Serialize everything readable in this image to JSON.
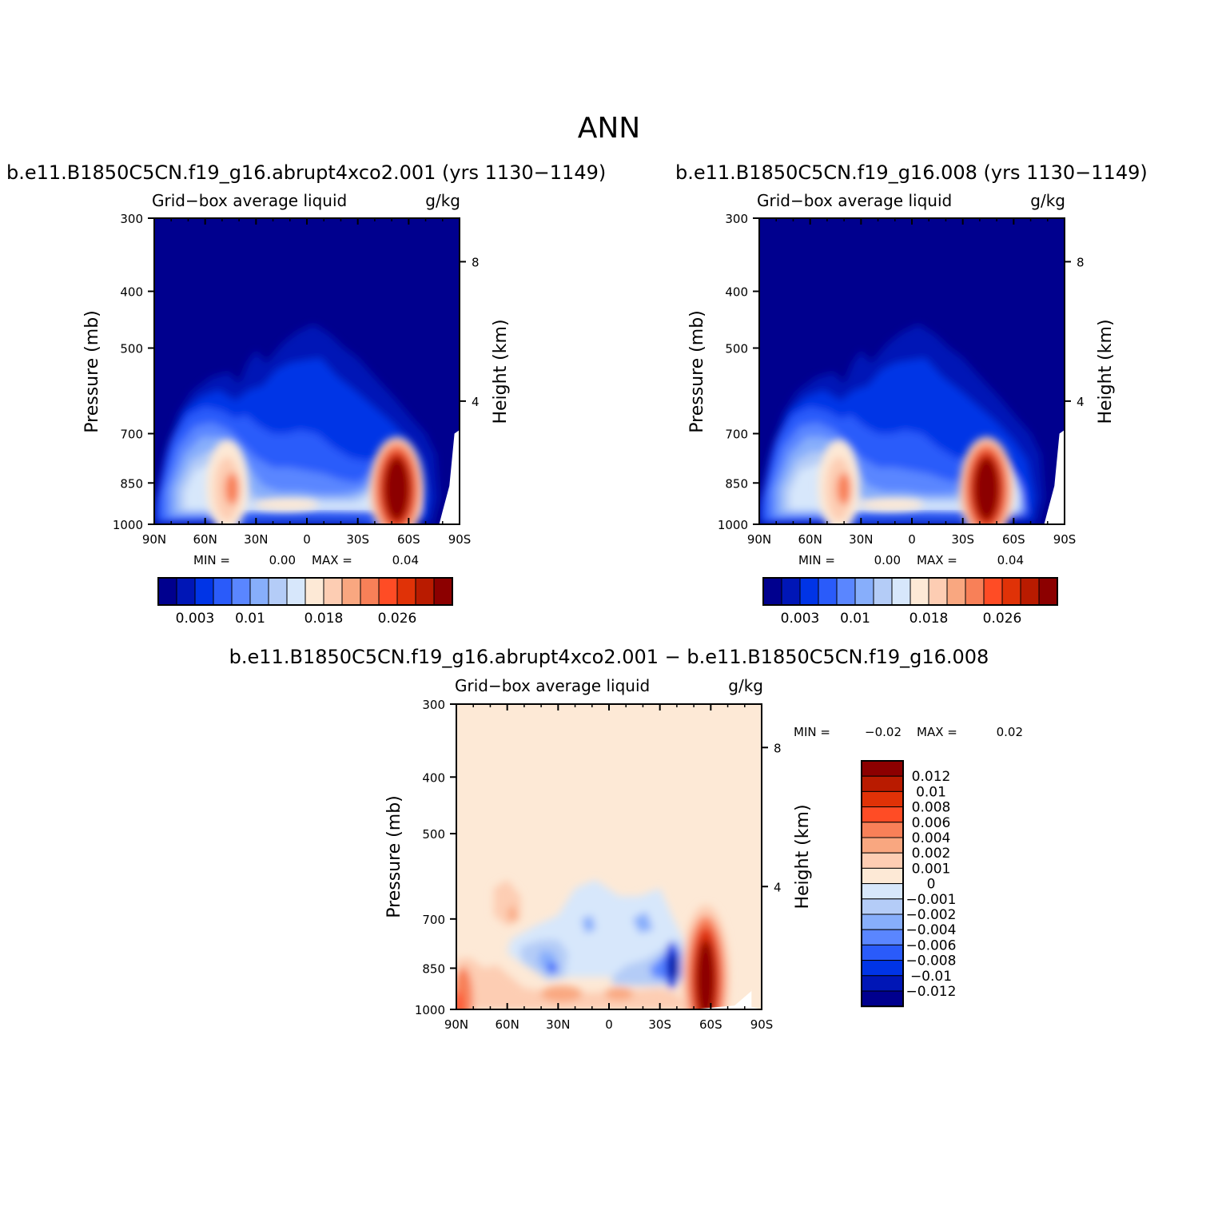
{
  "figure": {
    "season": "ANN",
    "diff_title": "b.e11.B1850C5CN.f19_g16.abrupt4xco2.001  −  b.e11.B1850C5CN.f19_g16.008"
  },
  "colors": {
    "seq_scale": [
      "#00008e",
      "#0016b6",
      "#0034e6",
      "#2a5bfa",
      "#5a86ff",
      "#87aefb",
      "#b4ccf7",
      "#d7e7fb",
      "#fde9d6",
      "#fdcdb3",
      "#f9a780",
      "#f88058",
      "#ff4c25",
      "#e03207",
      "#b91b00",
      "#8c0000"
    ],
    "diff_scale": [
      "#8c0000",
      "#b91b00",
      "#e03207",
      "#ff4c25",
      "#f88058",
      "#f9a780",
      "#fdcdb3",
      "#fde9d6",
      "#d7e7fb",
      "#b4ccf7",
      "#87aefb",
      "#5a86ff",
      "#2a5bfa",
      "#0034e6",
      "#0016b6",
      "#00008e"
    ]
  },
  "chart_data": [
    {
      "type": "heatmap",
      "title": "b.e11.B1850C5CN.f19_g16.abrupt4xco2.001 (yrs 1130−1149)",
      "subtitle": "Grid−box average liquid",
      "units": "g/kg",
      "xlabel": "",
      "ylabel": "Pressure  (mb)",
      "y2label": "Height  (km)",
      "x_ticks": [
        "90N",
        "60N",
        "30N",
        "0",
        "30S",
        "60S",
        "90S"
      ],
      "x_tick_values": [
        90,
        60,
        30,
        0,
        -30,
        -60,
        -90
      ],
      "xlim": [
        90,
        -90
      ],
      "y_ticks": [
        "300",
        "400",
        "500",
        "700",
        "850",
        "1000"
      ],
      "y_tick_values": [
        300,
        400,
        500,
        700,
        850,
        1000
      ],
      "ylim": [
        1000,
        300
      ],
      "y_scale": "log",
      "height_ticks": [
        "8",
        "4"
      ],
      "height_tick_pressure": [
        356,
        616
      ],
      "stats": {
        "min_label": "MIN =",
        "min": "0.00",
        "max_label": "MAX =",
        "max": "0.04"
      },
      "colorbar_labels": [
        "0.003",
        "0.01",
        "0.018",
        "0.026"
      ],
      "features": [
        {
          "lat": 47,
          "p": 865,
          "value": 0.018,
          "note": "NH midlatitude maximum"
        },
        {
          "lat": -56,
          "p": 860,
          "value": 0.04,
          "note": "SH storm-track maximum"
        },
        {
          "lat": 0,
          "p": 925,
          "value": 0.012,
          "note": "tropical low-level"
        }
      ]
    },
    {
      "type": "heatmap",
      "title": "b.e11.B1850C5CN.f19_g16.008 (yrs 1130−1149)",
      "subtitle": "Grid−box average liquid",
      "units": "g/kg",
      "xlabel": "",
      "ylabel": "Pressure  (mb)",
      "y2label": "Height  (km)",
      "x_ticks": [
        "90N",
        "60N",
        "30N",
        "0",
        "30S",
        "60S",
        "90S"
      ],
      "x_tick_values": [
        90,
        60,
        30,
        0,
        -30,
        -60,
        -90
      ],
      "xlim": [
        90,
        -90
      ],
      "y_ticks": [
        "300",
        "400",
        "500",
        "700",
        "850",
        "1000"
      ],
      "y_tick_values": [
        300,
        400,
        500,
        700,
        850,
        1000
      ],
      "ylim": [
        1000,
        300
      ],
      "y_scale": "log",
      "height_ticks": [
        "8",
        "4"
      ],
      "height_tick_pressure": [
        356,
        616
      ],
      "stats": {
        "min_label": "MIN =",
        "min": "0.00",
        "max_label": "MAX =",
        "max": "0.04"
      },
      "colorbar_labels": [
        "0.003",
        "0.01",
        "0.018",
        "0.026"
      ],
      "features": [
        {
          "lat": 43,
          "p": 860,
          "value": 0.02,
          "note": "NH midlatitude maximum"
        },
        {
          "lat": -45,
          "p": 855,
          "value": 0.04,
          "note": "SH storm-track maximum"
        },
        {
          "lat": 0,
          "p": 925,
          "value": 0.01,
          "note": "tropical low-level"
        }
      ]
    },
    {
      "type": "heatmap",
      "title": "b.e11.B1850C5CN.f19_g16.abrupt4xco2.001  −  b.e11.B1850C5CN.f19_g16.008",
      "subtitle": "Grid−box average liquid",
      "units": "g/kg",
      "xlabel": "",
      "ylabel": "Pressure  (mb)",
      "y2label": "Height  (km)",
      "x_ticks": [
        "90N",
        "60N",
        "30N",
        "0",
        "30S",
        "60S",
        "90S"
      ],
      "x_tick_values": [
        90,
        60,
        30,
        0,
        -30,
        -60,
        -90
      ],
      "xlim": [
        90,
        -90
      ],
      "y_ticks": [
        "300",
        "400",
        "500",
        "700",
        "850",
        "1000"
      ],
      "y_tick_values": [
        300,
        400,
        500,
        700,
        850,
        1000
      ],
      "ylim": [
        1000,
        300
      ],
      "y_scale": "log",
      "height_ticks": [
        "8",
        "4"
      ],
      "height_tick_pressure": [
        356,
        616
      ],
      "stats": {
        "min_label": "MIN =",
        "min": "−0.02",
        "max_label": "MAX =",
        "max": "0.02"
      },
      "colorbar_labels": [
        "0.012",
        "0.01",
        "0.008",
        "0.006",
        "0.004",
        "0.002",
        "0.001",
        "0",
        "−0.001",
        "−0.002",
        "−0.004",
        "−0.006",
        "−0.008",
        "−0.01",
        "−0.012"
      ],
      "features": [
        {
          "lat": -60,
          "p": 880,
          "value": 0.02,
          "note": "SH positive dipole lobe"
        },
        {
          "lat": -40,
          "p": 850,
          "value": -0.02,
          "note": "SH negative dipole lobe"
        },
        {
          "lat": 30,
          "p": 840,
          "value": -0.006,
          "note": "NH subtropical decrease"
        },
        {
          "lat": 85,
          "p": 980,
          "value": 0.006,
          "note": "Arctic low-level increase"
        }
      ]
    }
  ]
}
